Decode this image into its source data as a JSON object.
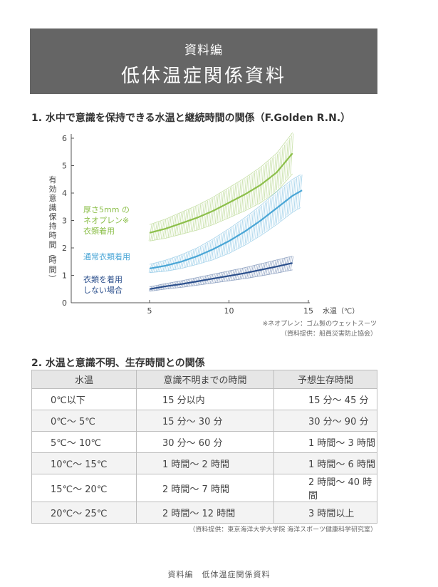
{
  "header": {
    "subtitle": "資料編",
    "title": "低体温症関係資料"
  },
  "section1": {
    "title": "1. 水中で意識を保持できる水温と継続時間の関係（F.Golden R.N.）"
  },
  "chart_data": {
    "type": "area",
    "ylabel": "有効意識保持時間（時間）",
    "xlabel": "水温（℃）",
    "xticks": [
      "5",
      "10",
      "15"
    ],
    "yticks": [
      "0",
      "1",
      "2",
      "3",
      "4",
      "5",
      "6"
    ],
    "xlim": [
      0,
      15
    ],
    "ylim": [
      0,
      6
    ],
    "series": [
      {
        "name": "厚さ5mm のネオプレン※衣類着用",
        "label_lines": [
          "厚さ5mm の",
          "ネオプレン※",
          "衣類着用"
        ],
        "color": "#8cbf4a",
        "x": [
          5,
          6,
          7,
          8,
          9,
          10,
          11,
          12,
          13,
          14
        ],
        "values": [
          2.55,
          2.7,
          2.9,
          3.1,
          3.35,
          3.65,
          3.95,
          4.3,
          4.75,
          5.45
        ],
        "band": [
          0.3,
          0.35,
          0.4,
          0.45,
          0.5,
          0.55,
          0.6,
          0.65,
          0.7,
          0.75
        ]
      },
      {
        "name": "通常衣類着用",
        "label_lines": [
          "通常衣類着用"
        ],
        "color": "#4aa6d6",
        "x": [
          5,
          6,
          7,
          8,
          9,
          10,
          11,
          12,
          13,
          14,
          14.6
        ],
        "values": [
          1.25,
          1.35,
          1.5,
          1.7,
          1.95,
          2.25,
          2.6,
          3.0,
          3.45,
          3.9,
          4.1
        ],
        "band": [
          0.15,
          0.2,
          0.25,
          0.3,
          0.38,
          0.45,
          0.5,
          0.55,
          0.6,
          0.6,
          0.6
        ]
      },
      {
        "name": "衣類を着用しない場合",
        "label_lines": [
          "衣類を着用",
          "しない場合"
        ],
        "color": "#2b4f8c",
        "x": [
          5,
          6,
          7,
          8,
          9,
          10,
          11,
          12,
          13,
          14
        ],
        "values": [
          0.5,
          0.6,
          0.68,
          0.78,
          0.88,
          0.98,
          1.08,
          1.2,
          1.32,
          1.45
        ],
        "band": [
          0.08,
          0.1,
          0.12,
          0.14,
          0.16,
          0.18,
          0.2,
          0.22,
          0.24,
          0.25
        ]
      }
    ],
    "grid": false,
    "legend": "inline-left"
  },
  "notes": {
    "line1": "※ネオプレン：ゴム製のウェットスーツ",
    "line2": "（資料提供：船員災害防止協会）"
  },
  "section2": {
    "title": "2. 水温と意識不明、生存時間との関係"
  },
  "table": {
    "headers": [
      "水温",
      "意識不明までの時間",
      "予想生存時間"
    ],
    "rows": [
      [
        "0℃以下",
        "15 分以内",
        "15 分～ 45 分"
      ],
      [
        "0℃～ 5℃",
        "15 分～ 30 分",
        "30 分～ 90 分"
      ],
      [
        "5℃～ 10℃",
        "30 分～ 60 分",
        "1 時間～ 3 時間"
      ],
      [
        "10℃～ 15℃",
        "1 時間～ 2 時間",
        "1 時間～ 6 時間"
      ],
      [
        "15℃～ 20℃",
        "2 時間～ 7 時間",
        "2 時間～ 40 時間"
      ],
      [
        "20℃～ 25℃",
        "2 時間～ 12 時間",
        "3 時間以上"
      ]
    ]
  },
  "source2": "（資料提供：東京海洋大学大学院 海洋スポーツ健康科学研究室）",
  "footer": "資料編　低体温症関係資料"
}
